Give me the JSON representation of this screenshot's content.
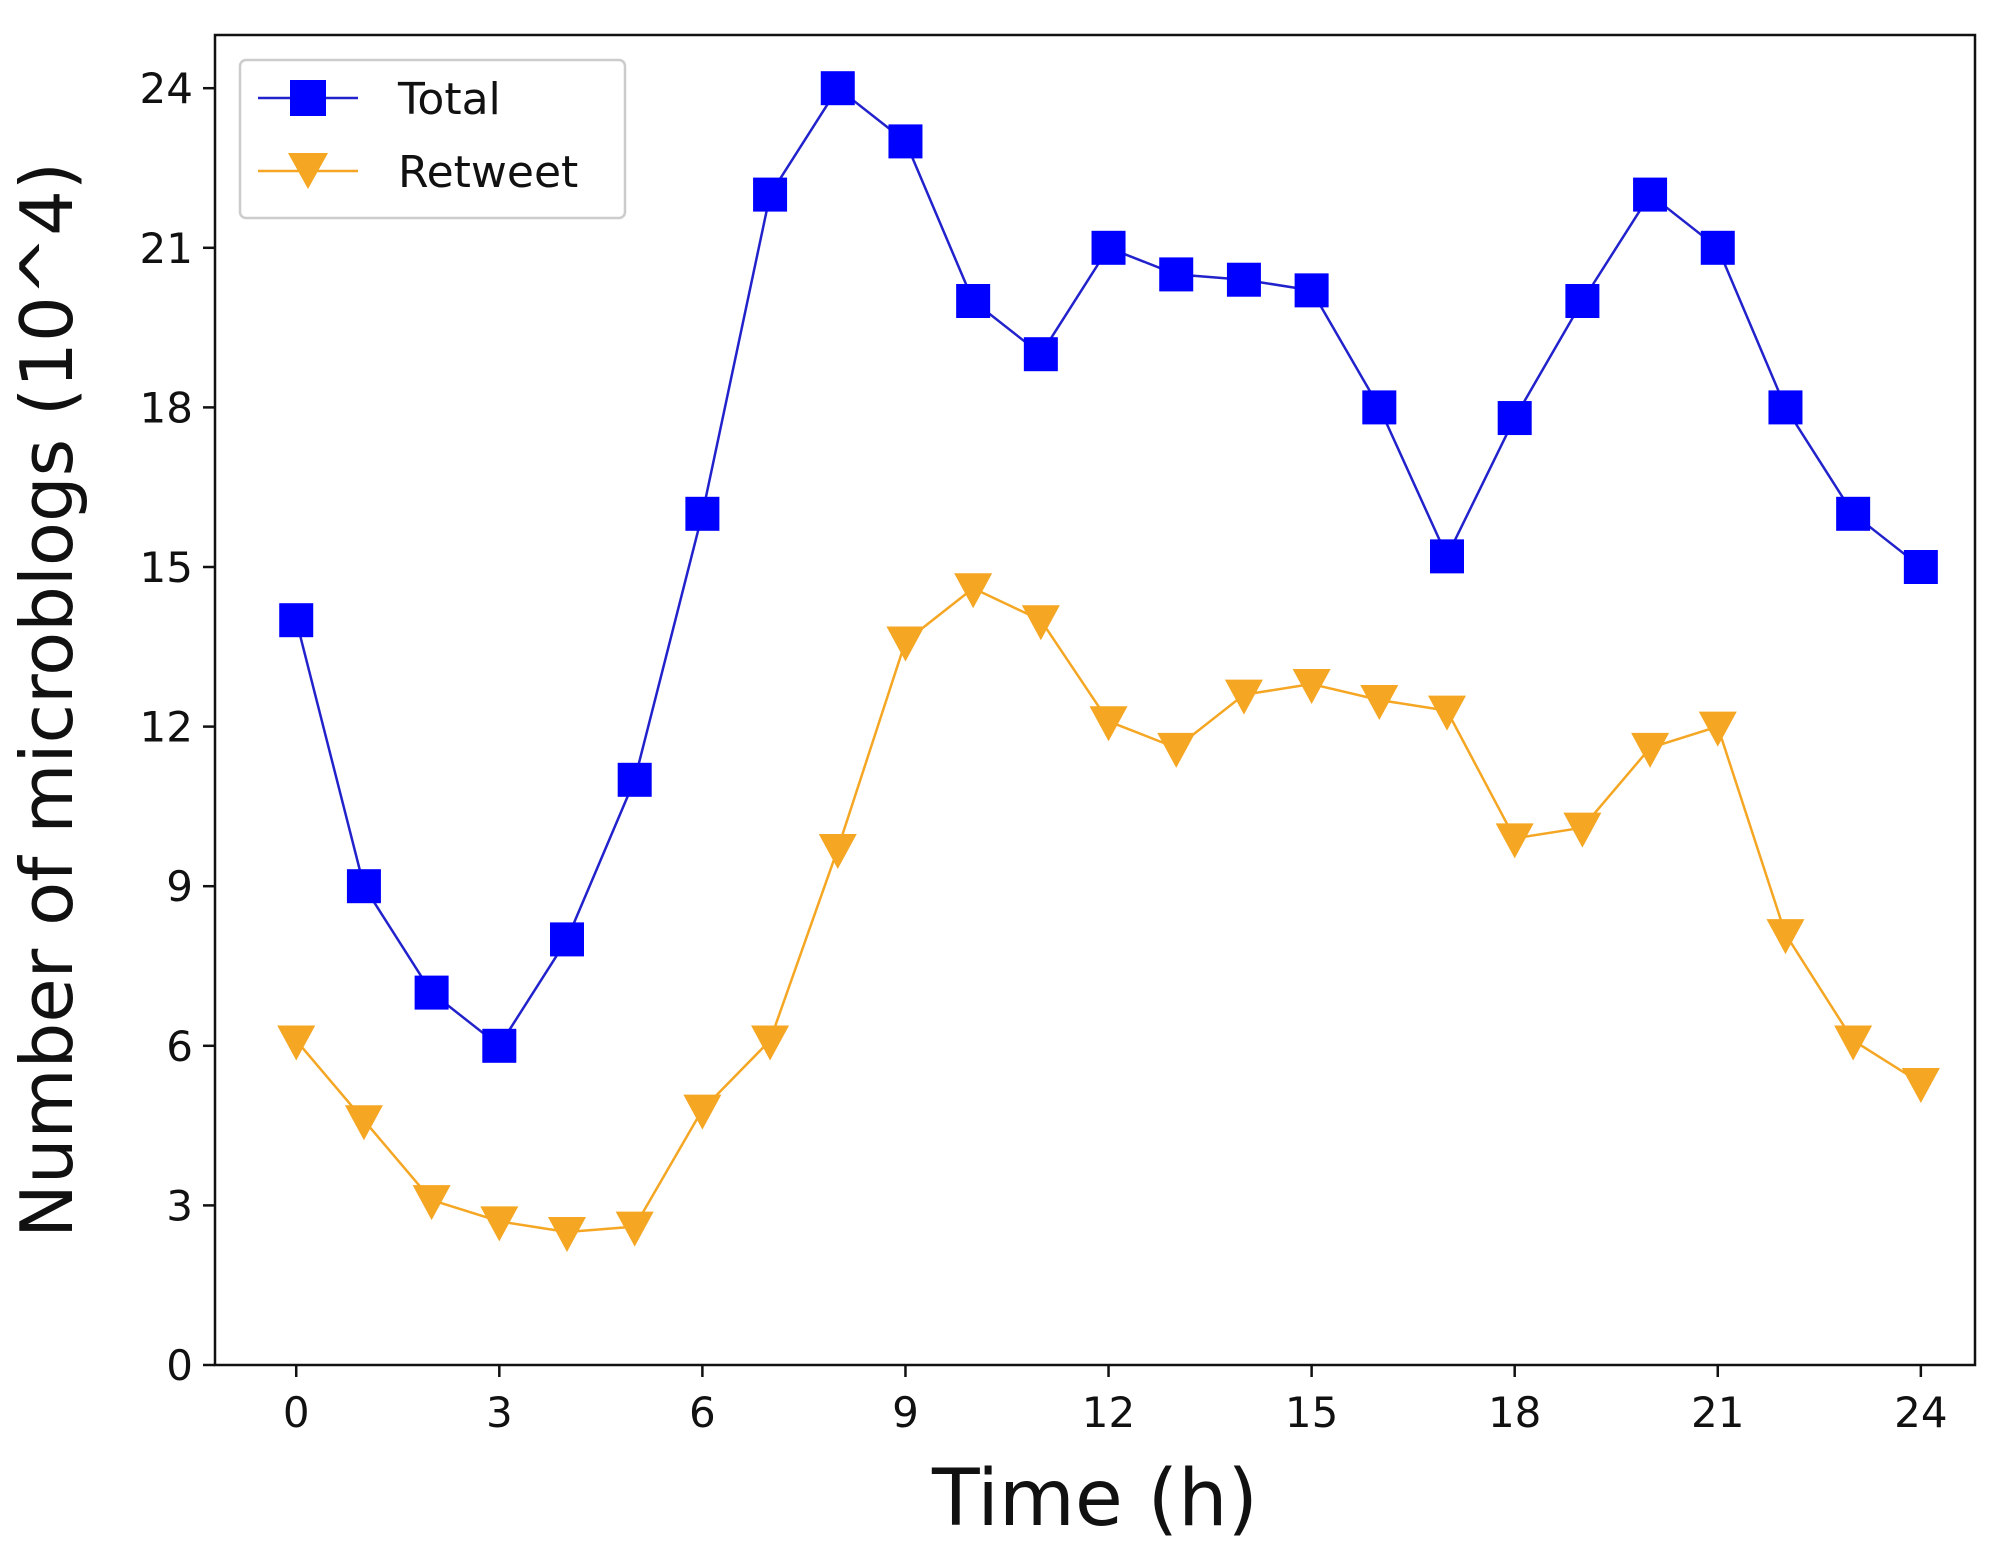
{
  "chart_data": {
    "type": "line",
    "title": "",
    "xlabel": "Time (h)",
    "ylabel": "Number of microblogs (10^4)",
    "xlim": [
      -1.2,
      24.8
    ],
    "ylim": [
      0,
      25
    ],
    "xticks": [
      0,
      3,
      6,
      9,
      12,
      15,
      18,
      21,
      24
    ],
    "yticks": [
      0,
      3,
      6,
      9,
      12,
      15,
      18,
      21,
      24
    ],
    "grid": false,
    "legend_position": "top-left",
    "x": [
      0,
      1,
      2,
      3,
      4,
      5,
      6,
      7,
      8,
      9,
      10,
      11,
      12,
      13,
      14,
      15,
      16,
      17,
      18,
      19,
      20,
      21,
      22,
      23,
      24
    ],
    "series": [
      {
        "name": "Total",
        "color": "#0000ff",
        "line_color": "#2222cc",
        "marker": "square",
        "values": [
          14,
          9,
          7,
          6,
          8,
          11,
          16,
          22,
          24,
          23,
          20,
          19,
          21,
          20.5,
          20.4,
          20.2,
          18,
          15.2,
          17.8,
          20,
          22,
          21,
          18,
          16,
          15
        ]
      },
      {
        "name": "Retweet",
        "color": "#f5a623",
        "line_color": "#f5a623",
        "marker": "triangle-down",
        "values": [
          6.1,
          4.6,
          3.1,
          2.7,
          2.5,
          2.6,
          4.8,
          6.1,
          9.7,
          13.6,
          14.6,
          14,
          12.1,
          11.6,
          12.6,
          12.8,
          12.5,
          12.3,
          9.9,
          10.1,
          11.6,
          12,
          8.1,
          6.1,
          5.3
        ]
      }
    ]
  }
}
